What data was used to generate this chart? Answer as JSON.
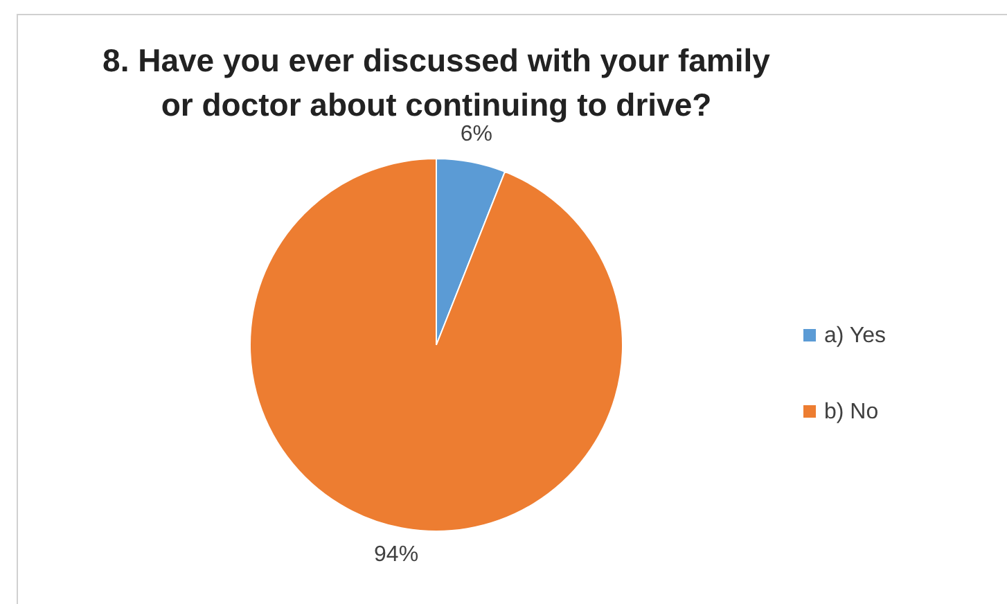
{
  "chart_data": {
    "type": "pie",
    "title": "8. Have you ever discussed with your family or doctor about continuing to drive?",
    "categories": [
      "a) Yes",
      "b) No"
    ],
    "values": [
      6,
      94
    ],
    "colors": [
      "#5b9bd5",
      "#ed7d31"
    ],
    "value_labels": [
      "6%",
      "94%"
    ],
    "legend": "right"
  }
}
